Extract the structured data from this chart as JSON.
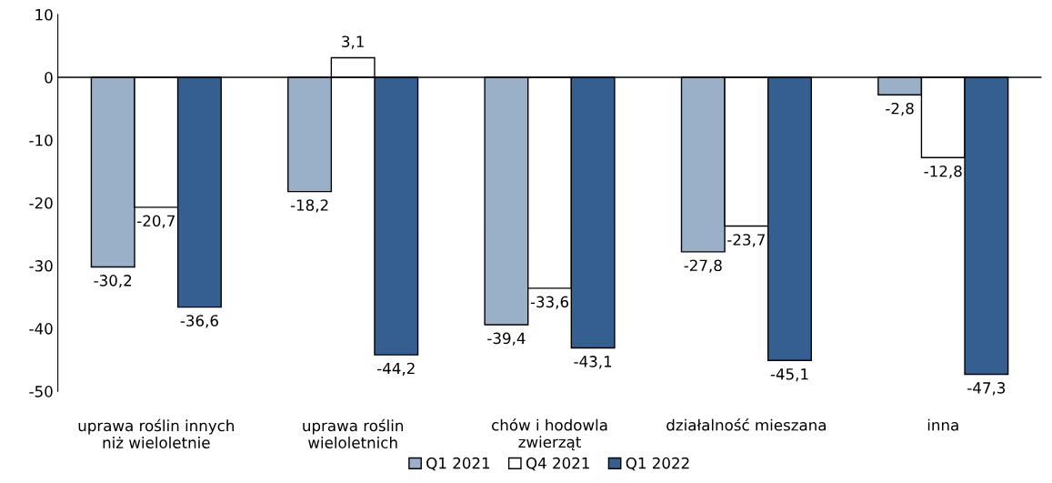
{
  "chart_data": {
    "type": "bar",
    "categories": [
      "uprawa roślin innych\nniż wieloletnie",
      "uprawa roślin\nwieloletnich",
      "chów i hodowla\nzwierząt",
      "działalność mieszana",
      "inna"
    ],
    "series": [
      {
        "name": "Q1 2021",
        "color": "#9ab0c9",
        "values": [
          -30.2,
          -18.2,
          -39.4,
          -27.8,
          -2.8
        ],
        "value_labels": [
          "-30,2",
          "-18,2",
          "-39,4",
          "-27,8",
          "-2,8"
        ]
      },
      {
        "name": "Q4 2021",
        "color": "#ffffff",
        "values": [
          -20.7,
          3.1,
          -33.6,
          -23.7,
          -12.8
        ],
        "value_labels": [
          "-20,7",
          "3,1",
          "-33,6",
          "-23,7",
          "-12,8"
        ]
      },
      {
        "name": "Q1 2022",
        "color": "#355f91",
        "values": [
          -36.6,
          -44.2,
          -43.1,
          -45.1,
          -47.3
        ],
        "value_labels": [
          "-36,6",
          "-44,2",
          "-43,1",
          "-45,1",
          "-47,3"
        ]
      }
    ],
    "ylim": [
      -50,
      10
    ],
    "yticks": [
      -50,
      -40,
      -30,
      -20,
      -10,
      0,
      10
    ],
    "legend": "bottom"
  }
}
